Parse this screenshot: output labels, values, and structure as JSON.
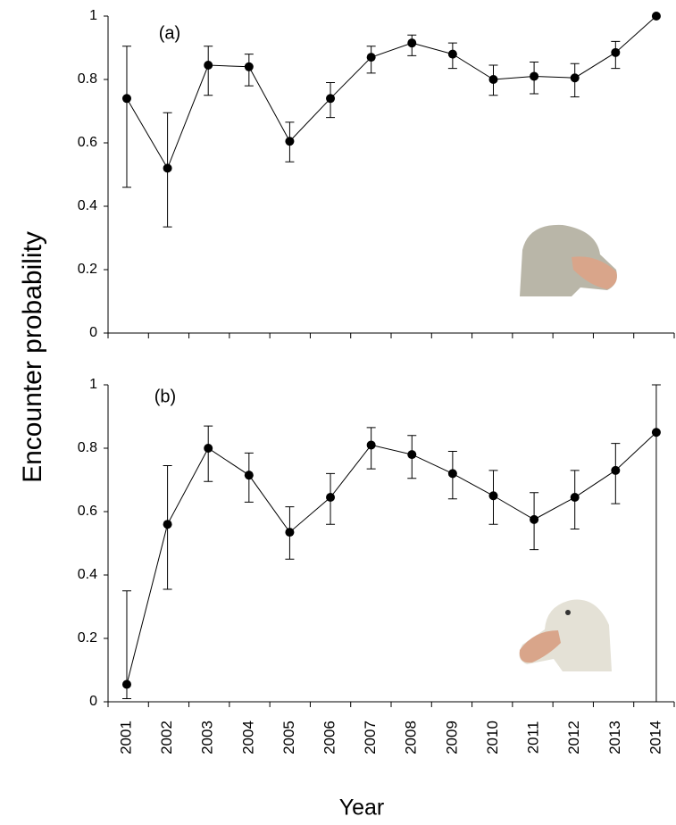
{
  "chart_data": [
    {
      "type": "line",
      "panel_label": "(a)",
      "ylabel": "Encounter probability",
      "color": "#000000",
      "x": [
        2001,
        2002,
        2003,
        2004,
        2005,
        2006,
        2007,
        2008,
        2009,
        2010,
        2011,
        2012,
        2013,
        2014
      ],
      "values": [
        0.74,
        0.52,
        0.845,
        0.84,
        0.605,
        0.74,
        0.87,
        0.915,
        0.88,
        0.8,
        0.81,
        0.805,
        0.885,
        1.0
      ],
      "lower": [
        0.46,
        0.335,
        0.75,
        0.78,
        0.54,
        0.68,
        0.82,
        0.875,
        0.835,
        0.75,
        0.755,
        0.745,
        0.835,
        null
      ],
      "upper": [
        0.905,
        0.695,
        0.905,
        0.88,
        0.665,
        0.79,
        0.905,
        0.94,
        0.915,
        0.845,
        0.855,
        0.85,
        0.92,
        null
      ],
      "xlim": [
        2000.54,
        2014.44
      ],
      "ylim": [
        0,
        1
      ],
      "yticks": [
        0,
        0.2,
        0.4,
        0.6,
        0.8,
        1
      ]
    },
    {
      "type": "line",
      "panel_label": "(b)",
      "xlabel": "Year",
      "color": "#000000",
      "x": [
        2001,
        2002,
        2003,
        2004,
        2005,
        2006,
        2007,
        2008,
        2009,
        2010,
        2011,
        2012,
        2013,
        2014
      ],
      "values": [
        0.055,
        0.56,
        0.8,
        0.715,
        0.535,
        0.645,
        0.81,
        0.78,
        0.72,
        0.65,
        0.575,
        0.645,
        0.73,
        0.85
      ],
      "lower": [
        0.01,
        0.355,
        0.695,
        0.63,
        0.45,
        0.56,
        0.735,
        0.705,
        0.64,
        0.56,
        0.48,
        0.545,
        0.625,
        0
      ],
      "upper": [
        0.35,
        0.745,
        0.87,
        0.785,
        0.615,
        0.72,
        0.865,
        0.84,
        0.79,
        0.73,
        0.66,
        0.73,
        0.815,
        1.0
      ],
      "xlim": [
        2000.54,
        2014.44
      ],
      "ylim": [
        0,
        1
      ],
      "yticks": [
        0,
        0.2,
        0.4,
        0.6,
        0.8,
        1
      ],
      "xticks": [
        2001,
        2002,
        2003,
        2004,
        2005,
        2006,
        2007,
        2008,
        2009,
        2010,
        2011,
        2012,
        2013,
        2014
      ]
    }
  ]
}
